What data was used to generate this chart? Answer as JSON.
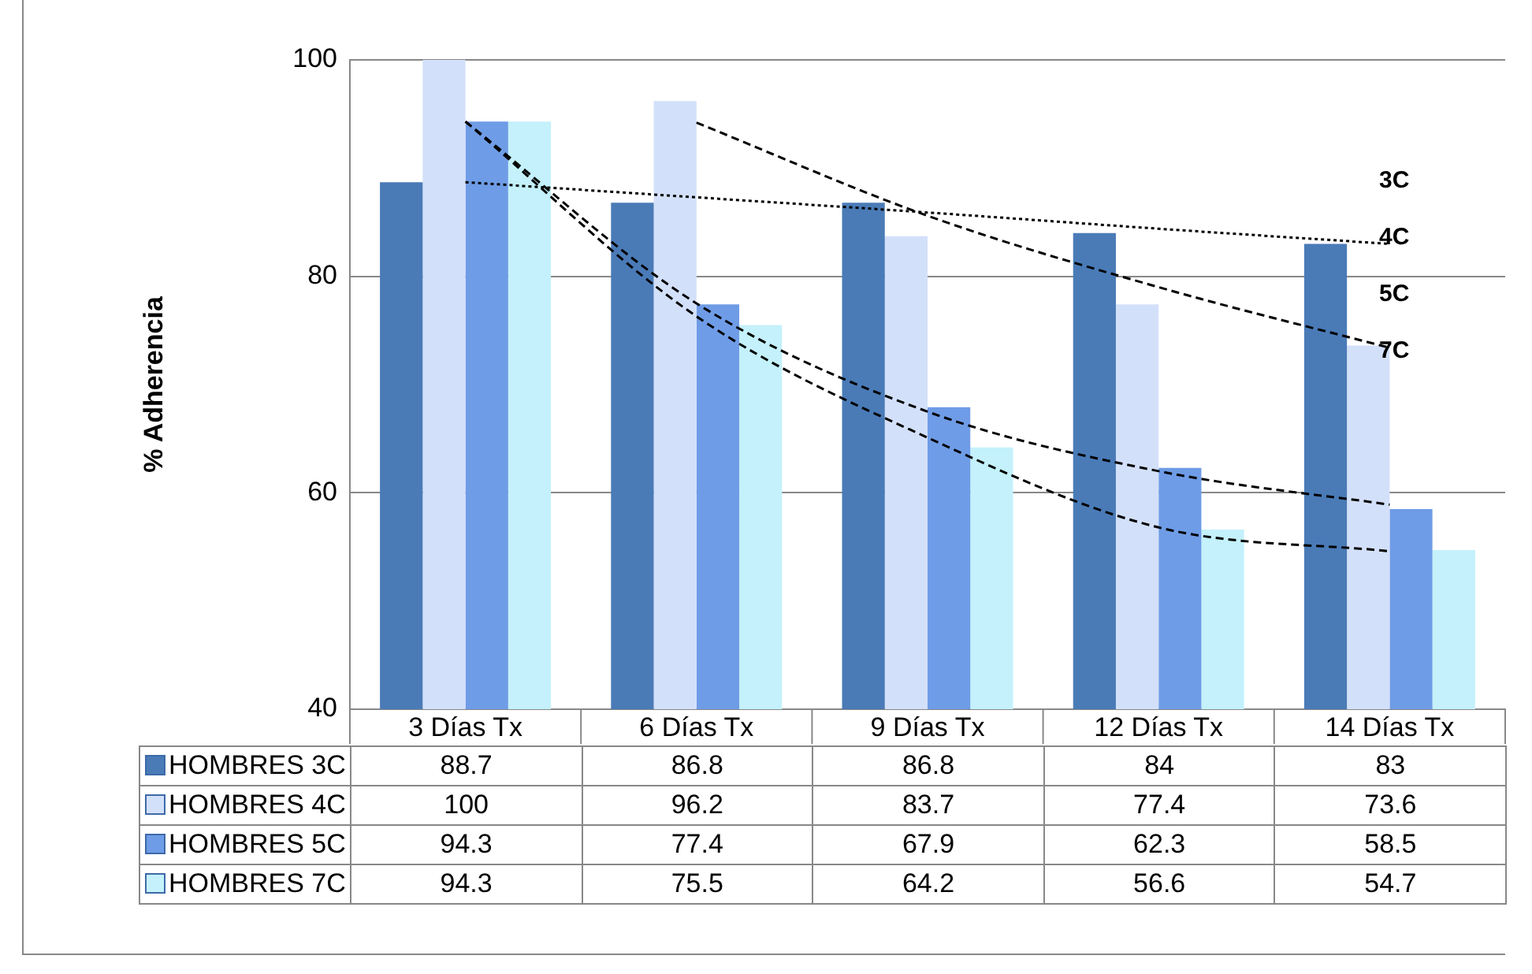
{
  "chart_data": {
    "type": "bar",
    "ylabel": "% Adherencia",
    "categories": [
      "3 Días Tx",
      "6 Días Tx",
      "9 Días Tx",
      "12 Días Tx",
      "14 Días Tx"
    ],
    "series": [
      {
        "name": "HOMBRES 3C",
        "color": "#4a7bb7",
        "values": [
          88.7,
          86.8,
          86.8,
          84,
          83
        ],
        "value_labels": [
          "88.7",
          "86.8",
          "86.8",
          "84",
          "83"
        ]
      },
      {
        "name": "HOMBRES 4C",
        "color": "#d3e0fa",
        "values": [
          100,
          96.2,
          83.7,
          77.4,
          73.6
        ],
        "value_labels": [
          "100",
          "96.2",
          "83.7",
          "77.4",
          "73.6"
        ]
      },
      {
        "name": "HOMBRES 5C",
        "color": "#6f9ce6",
        "values": [
          94.3,
          77.4,
          67.9,
          62.3,
          58.5
        ],
        "value_labels": [
          "94.3",
          "77.4",
          "67.9",
          "62.3",
          "58.5"
        ]
      },
      {
        "name": "HOMBRES 7C",
        "color": "#c4f1fb",
        "values": [
          94.3,
          75.5,
          64.2,
          56.6,
          54.7
        ],
        "value_labels": [
          "94.3",
          "75.5",
          "64.2",
          "56.6",
          "54.7"
        ]
      },
      {
        "type": "line",
        "color": "#000000",
        "line_style": "dotted",
        "values": [
          88.7,
          87.3,
          85.9,
          84.4,
          83.0
        ]
      },
      {
        "type": "line",
        "color": "#000000",
        "line_style": "dashed",
        "values": [
          null,
          94.2,
          85.6,
          79.0,
          73.4
        ]
      },
      {
        "type": "line",
        "color": "#000000",
        "line_style": "dashed",
        "values": [
          94.3,
          77.5,
          67.5,
          62.0,
          58.9
        ]
      },
      {
        "type": "line",
        "color": "#000000",
        "line_style": "dashed",
        "values": [
          94.3,
          76.3,
          65.1,
          56.8,
          54.6
        ]
      }
    ],
    "ylim": [
      40,
      100
    ],
    "yticks": [
      40,
      60,
      80,
      100
    ],
    "grid": "y",
    "legend": "bottom",
    "marker": "none",
    "annotations": [
      "3C",
      "4C",
      "5C",
      "7C"
    ]
  }
}
